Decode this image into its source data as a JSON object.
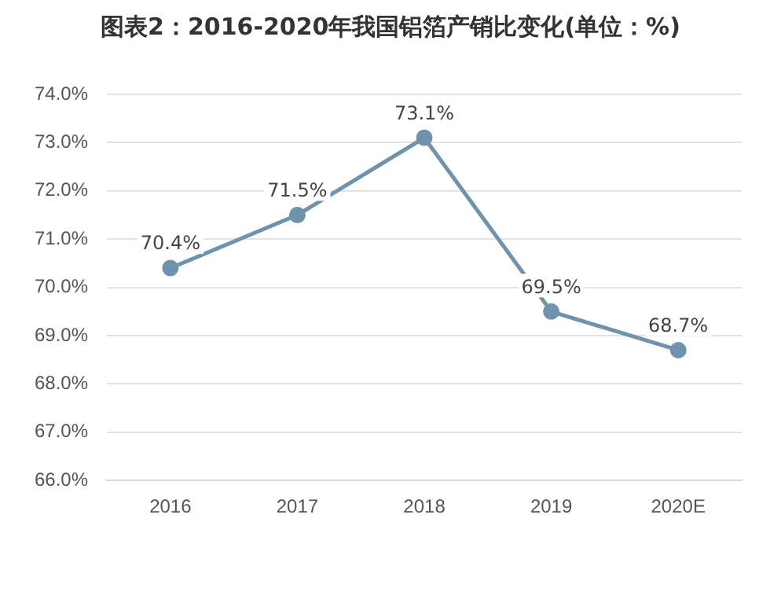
{
  "chart_data": {
    "type": "line",
    "title": "图表2：2016-2020年我国铝箔产销比变化(单位：%)",
    "categories": [
      "2016",
      "2017",
      "2018",
      "2019",
      "2020E"
    ],
    "series": [
      {
        "color": "#7093ad",
        "values": [
          70.4,
          71.5,
          73.1,
          69.5,
          68.7
        ]
      }
    ],
    "value_labels": [
      "70.4%",
      "71.5%",
      "73.1%",
      "69.5%",
      "68.7%"
    ],
    "ylim": [
      66,
      74
    ],
    "yticks": [
      {
        "value": 66,
        "label": "66.0%"
      },
      {
        "value": 67,
        "label": "67.0%"
      },
      {
        "value": 68,
        "label": "68.0%"
      },
      {
        "value": 69,
        "label": "69.0%"
      },
      {
        "value": 70,
        "label": "70.0%"
      },
      {
        "value": 71,
        "label": "71.0%"
      },
      {
        "value": 72,
        "label": "72.0%"
      },
      {
        "value": 73,
        "label": "73.0%"
      },
      {
        "value": 74,
        "label": "74.0%"
      }
    ],
    "grid": "y",
    "legend": false,
    "marker": "circle",
    "line_style": "solid"
  }
}
